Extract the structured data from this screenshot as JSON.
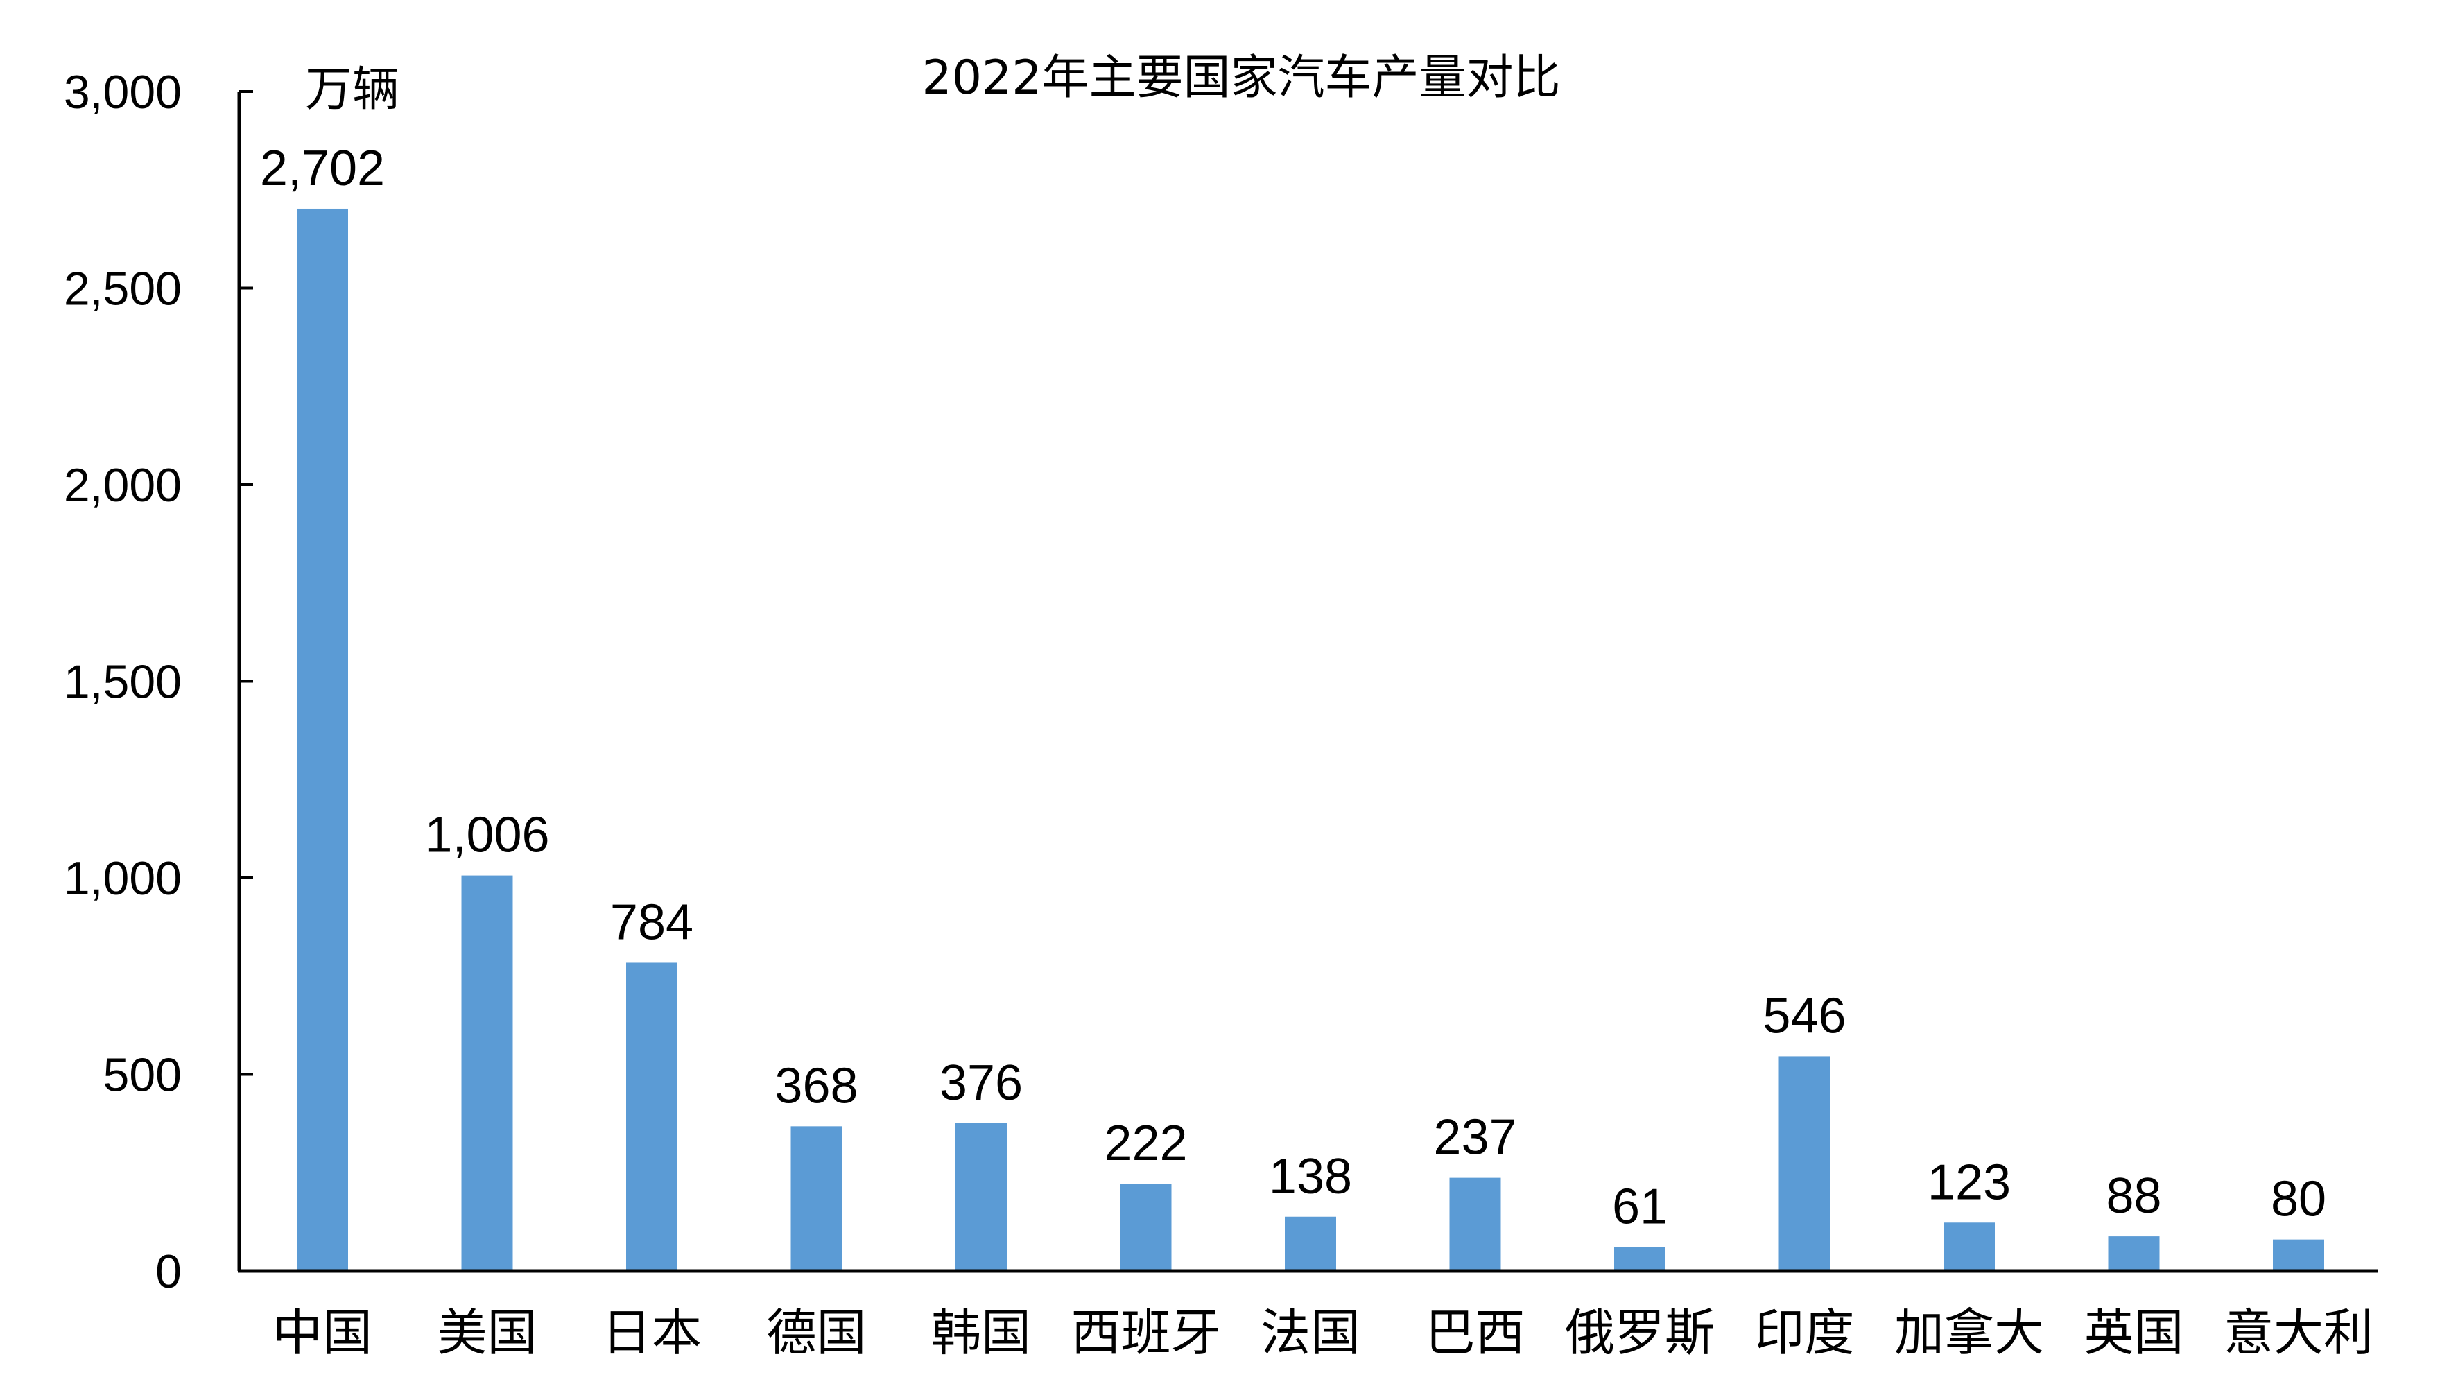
{
  "chart_data": {
    "type": "bar",
    "title": "2022年主要国家汽车产量对比",
    "ylabel": "万辆",
    "xlabel": "",
    "ylim": [
      0,
      3000
    ],
    "yticks": [
      0,
      500,
      1000,
      1500,
      2000,
      2500,
      3000
    ],
    "ytick_labels": [
      "0",
      "500",
      "1,000",
      "1,500",
      "2,000",
      "2,500",
      "3,000"
    ],
    "categories": [
      "中国",
      "美国",
      "日本",
      "德国",
      "韩国",
      "西班牙",
      "法国",
      "巴西",
      "俄罗斯",
      "印度",
      "加拿大",
      "英国",
      "意大利"
    ],
    "values": [
      2702,
      1006,
      784,
      368,
      376,
      222,
      138,
      237,
      61,
      546,
      123,
      88,
      80
    ],
    "value_labels": [
      "2,702",
      "1,006",
      "784",
      "368",
      "376",
      "222",
      "138",
      "237",
      "61",
      "546",
      "123",
      "88",
      "80"
    ],
    "bar_color": "#5B9BD5",
    "grid": false,
    "legend": "none"
  }
}
